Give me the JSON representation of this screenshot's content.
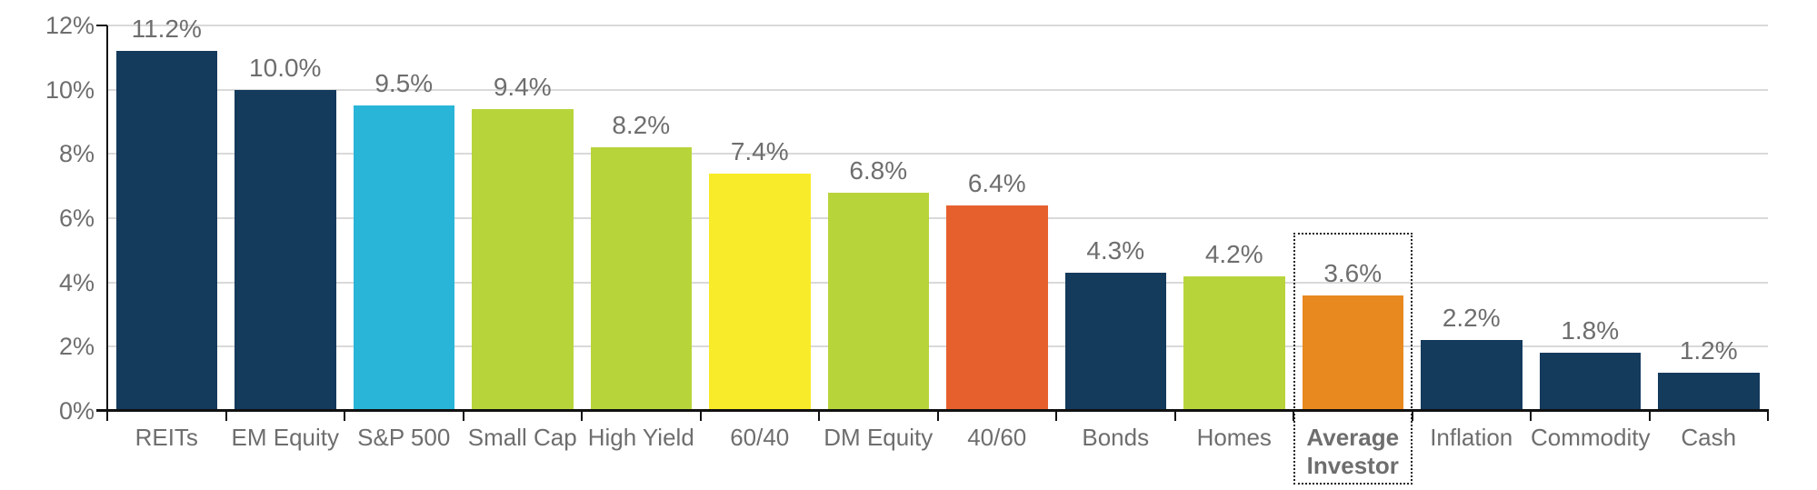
{
  "chart_data": {
    "type": "bar",
    "title": "",
    "xlabel": "",
    "ylabel": "",
    "ylim": [
      0,
      12
    ],
    "grid": true,
    "y_ticks": [
      {
        "value": 0,
        "label": "0%"
      },
      {
        "value": 2,
        "label": "2%"
      },
      {
        "value": 4,
        "label": "4%"
      },
      {
        "value": 6,
        "label": "6%"
      },
      {
        "value": 8,
        "label": "8%"
      },
      {
        "value": 10,
        "label": "10%"
      },
      {
        "value": 12,
        "label": "12%"
      }
    ],
    "categories": [
      "REITs",
      "EM Equity",
      "S&P 500",
      "Small Cap",
      "High Yield",
      "60/40",
      "DM Equity",
      "40/60",
      "Bonds",
      "Homes",
      "Average Investor",
      "Inflation",
      "Commodity",
      "Cash"
    ],
    "values": [
      11.2,
      10.0,
      9.5,
      9.4,
      8.2,
      7.4,
      6.8,
      6.4,
      4.3,
      4.2,
      3.6,
      2.2,
      1.8,
      1.2
    ],
    "value_labels": [
      "11.2%",
      "10.0%",
      "9.5%",
      "9.4%",
      "8.2%",
      "7.4%",
      "6.8%",
      "6.4%",
      "4.3%",
      "4.2%",
      "3.6%",
      "2.2%",
      "1.8%",
      "1.2%"
    ],
    "bar_colors": [
      "#143A5C",
      "#143A5C",
      "#29B5D7",
      "#B8D43B",
      "#B8D43B",
      "#F8EB29",
      "#B8D43B",
      "#E6602E",
      "#143A5C",
      "#B8D43B",
      "#E8891F",
      "#143A5C",
      "#143A5C",
      "#143A5C"
    ],
    "highlight": {
      "category": "Average Investor",
      "index": 10,
      "style": "dotted-box",
      "label_bold": true
    },
    "legend": null
  },
  "colors": {
    "navy": "#143A5C",
    "cyan": "#29B5D7",
    "green": "#B8D43B",
    "yellow": "#F8EB29",
    "red_orange": "#E6602E",
    "orange": "#E8891F",
    "gridline": "#D9D9D9",
    "axis": "#111111",
    "text": "#6E6E6E",
    "highlight_border": "#222222"
  }
}
